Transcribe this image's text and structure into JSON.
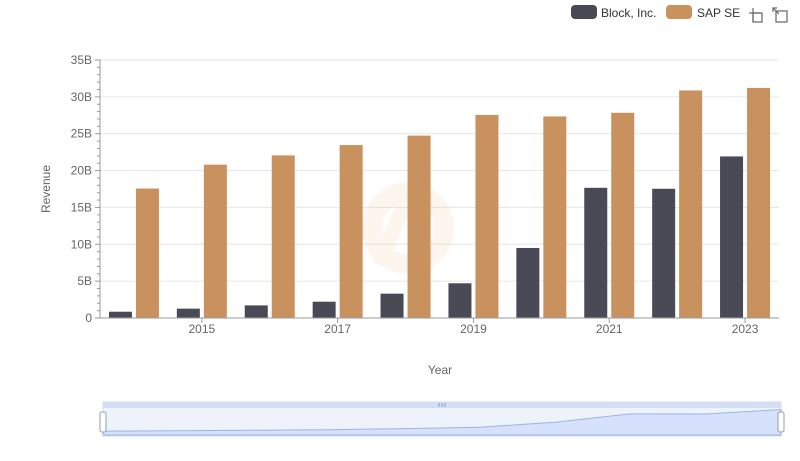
{
  "chart_data": {
    "type": "bar",
    "title": "",
    "xlabel": "Year",
    "ylabel": "Revenue",
    "ylim": [
      0,
      35000000000
    ],
    "yticks": [
      {
        "value": 0,
        "label": "0"
      },
      {
        "value": 5000000000,
        "label": "5B"
      },
      {
        "value": 10000000000,
        "label": "10B"
      },
      {
        "value": 15000000000,
        "label": "15B"
      },
      {
        "value": 20000000000,
        "label": "20B"
      },
      {
        "value": 25000000000,
        "label": "25B"
      },
      {
        "value": 30000000000,
        "label": "30B"
      },
      {
        "value": 35000000000,
        "label": "35B"
      }
    ],
    "categories": [
      "2014",
      "2015",
      "2016",
      "2017",
      "2018",
      "2019",
      "2020",
      "2021",
      "2022",
      "2023"
    ],
    "xtick_labels": [
      "2015",
      "2017",
      "2019",
      "2021",
      "2023"
    ],
    "grid": true,
    "legend_position": "top-right",
    "series": [
      {
        "name": "Block, Inc.",
        "color": "#4a4a56",
        "values": [
          850000000,
          1270000000,
          1710000000,
          2210000000,
          3300000000,
          4710000000,
          9500000000,
          17660000000,
          17530000000,
          21920000000
        ]
      },
      {
        "name": "SAP SE",
        "color": "#c9915e",
        "values": [
          17560000000,
          20800000000,
          22060000000,
          23460000000,
          24740000000,
          27550000000,
          27340000000,
          27840000000,
          30870000000,
          31210000000
        ]
      }
    ]
  },
  "toolbar": {
    "icons": [
      "zoom-icon",
      "reset-zoom-icon"
    ]
  },
  "navigator": {
    "handle_icon": "grip-icon"
  }
}
